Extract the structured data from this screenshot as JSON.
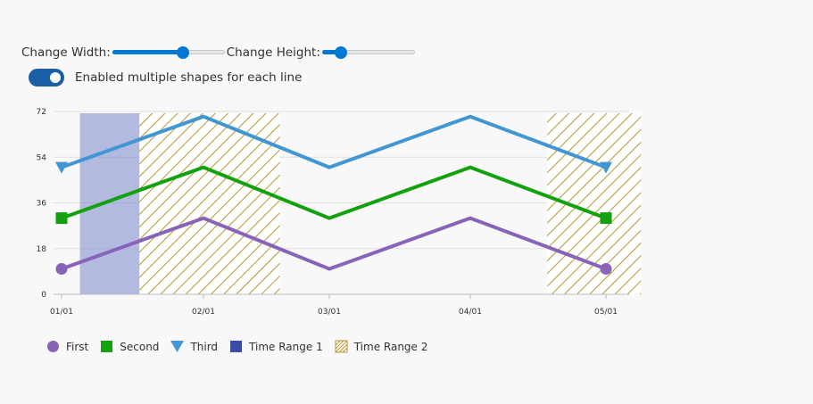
{
  "controls": {
    "width_label": "Change Width:",
    "width_value": 0.63,
    "height_label": "Change Height:",
    "height_value": 0.2,
    "toggle_label": "Enabled multiple shapes for each line",
    "toggle_on": true
  },
  "colors": {
    "first": "#8764b8",
    "second": "#13a10e",
    "third": "#4296d2",
    "range1": "#7a86cc",
    "range2": "#b8962e"
  },
  "chart_data": {
    "type": "line",
    "x": [
      "01/01",
      "02/01",
      "03/01",
      "04/01",
      "05/01"
    ],
    "y_ticks": [
      0,
      18,
      36,
      54,
      72
    ],
    "ylim": [
      0,
      72
    ],
    "grid": true,
    "legend_position": "bottom-left",
    "series": [
      {
        "name": "First",
        "values": [
          10,
          30,
          10,
          30,
          10
        ],
        "marker": "circle"
      },
      {
        "name": "Second",
        "values": [
          30,
          50,
          30,
          50,
          30
        ],
        "marker": "square"
      },
      {
        "name": "Third",
        "values": [
          50,
          70,
          50,
          70,
          50
        ],
        "marker": "triangle-down"
      }
    ],
    "ranges": [
      {
        "name": "Time Range 1",
        "start": "01/05",
        "end": "01/24",
        "pattern": "solid"
      },
      {
        "name": "Time Range 2",
        "start": "01/18",
        "end": "02/18",
        "pattern": "hatch"
      },
      {
        "name": "Time Range 2",
        "start": "04/18",
        "end": "05/09",
        "pattern": "hatch"
      }
    ]
  }
}
